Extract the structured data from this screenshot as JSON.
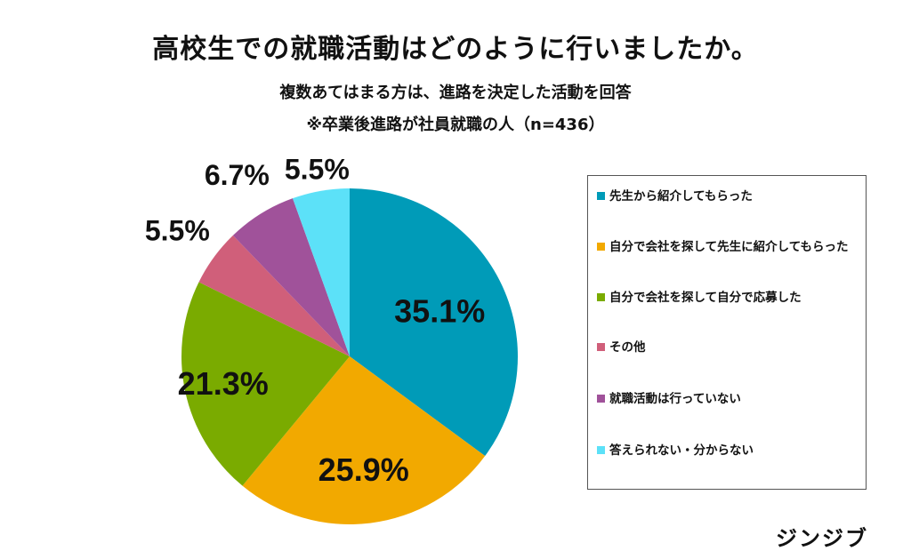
{
  "title": "高校生での就職活動はどのように行いましたか。",
  "subtitle1": "複数あてはまる方は、進路を決定した活動を回答",
  "subtitle2": "※卒業後進路が社員就職の人（n=436）",
  "brand": "ジンジブ",
  "chart_data": {
    "type": "pie",
    "categories": [
      "先生から紹介してもらった",
      "自分で会社を探して先生に紹介してもらった",
      "自分で会社を探して自分で応募した",
      "その他",
      "就職活動は行っていない",
      "答えられない・分からない"
    ],
    "values": [
      35.1,
      25.9,
      21.3,
      5.5,
      6.7,
      5.5
    ],
    "labels": [
      "35.1%",
      "25.9%",
      "21.3%",
      "5.5%",
      "6.7%",
      "5.5%"
    ],
    "colors": [
      "#009bb8",
      "#f2a900",
      "#7aab00",
      "#d05f7a",
      "#a0529a",
      "#5ce1f8"
    ],
    "start": "12 o'clock",
    "direction": "clockwise",
    "legend_position": "right"
  }
}
